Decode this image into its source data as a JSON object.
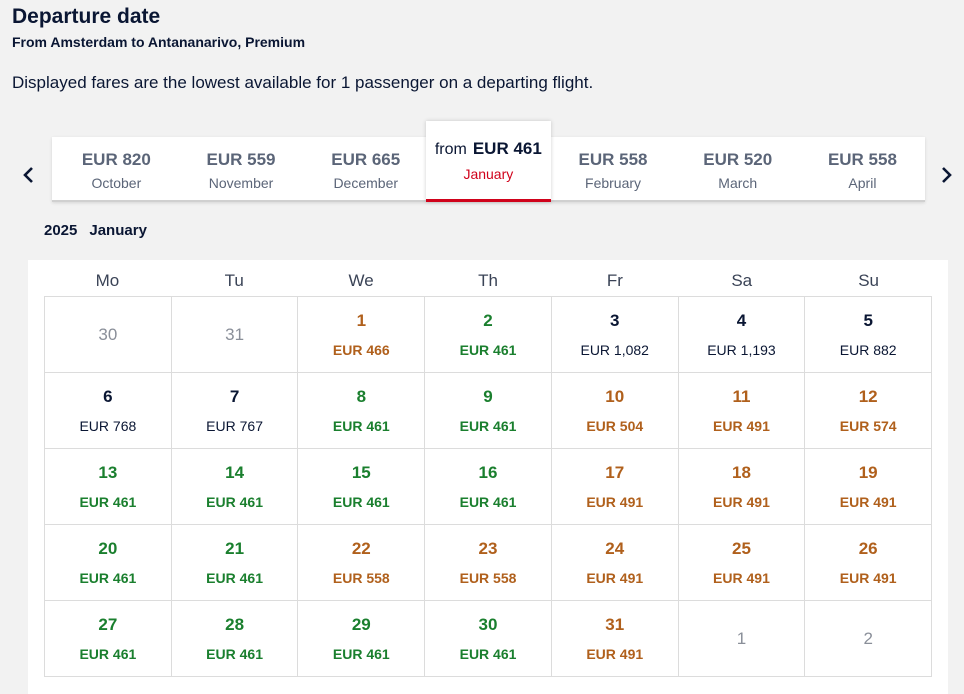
{
  "header": {
    "title": "Departure date",
    "subtitle": "From Amsterdam to Antananarivo, Premium",
    "description": "Displayed fares are the lowest available for 1 passenger on a departing flight."
  },
  "months": [
    {
      "price": "EUR 820",
      "name": "October"
    },
    {
      "price": "EUR 559",
      "name": "November"
    },
    {
      "price": "EUR 665",
      "name": "December"
    },
    {
      "from": "from",
      "price": "EUR 461",
      "name": "January",
      "active": true
    },
    {
      "price": "EUR 558",
      "name": "February"
    },
    {
      "price": "EUR 520",
      "name": "March"
    },
    {
      "price": "EUR 558",
      "name": "April"
    }
  ],
  "calendar": {
    "year": "2025",
    "month": "January",
    "weekdays": [
      "Mo",
      "Tu",
      "We",
      "Th",
      "Fr",
      "Sa",
      "Su"
    ],
    "weeks": [
      [
        {
          "day": "30",
          "fare": "",
          "type": "outside"
        },
        {
          "day": "31",
          "fare": "",
          "type": "outside"
        },
        {
          "day": "1",
          "fare": "EUR 466",
          "type": "orange"
        },
        {
          "day": "2",
          "fare": "EUR 461",
          "type": "green"
        },
        {
          "day": "3",
          "fare": "EUR 1,082",
          "type": "dark"
        },
        {
          "day": "4",
          "fare": "EUR 1,193",
          "type": "dark"
        },
        {
          "day": "5",
          "fare": "EUR 882",
          "type": "dark"
        }
      ],
      [
        {
          "day": "6",
          "fare": "EUR 768",
          "type": "dark"
        },
        {
          "day": "7",
          "fare": "EUR 767",
          "type": "dark"
        },
        {
          "day": "8",
          "fare": "EUR 461",
          "type": "green"
        },
        {
          "day": "9",
          "fare": "EUR 461",
          "type": "green"
        },
        {
          "day": "10",
          "fare": "EUR 504",
          "type": "orange"
        },
        {
          "day": "11",
          "fare": "EUR 491",
          "type": "orange"
        },
        {
          "day": "12",
          "fare": "EUR 574",
          "type": "orange"
        }
      ],
      [
        {
          "day": "13",
          "fare": "EUR 461",
          "type": "green"
        },
        {
          "day": "14",
          "fare": "EUR 461",
          "type": "green"
        },
        {
          "day": "15",
          "fare": "EUR 461",
          "type": "green"
        },
        {
          "day": "16",
          "fare": "EUR 461",
          "type": "green"
        },
        {
          "day": "17",
          "fare": "EUR 491",
          "type": "orange"
        },
        {
          "day": "18",
          "fare": "EUR 491",
          "type": "orange"
        },
        {
          "day": "19",
          "fare": "EUR 491",
          "type": "orange"
        }
      ],
      [
        {
          "day": "20",
          "fare": "EUR 461",
          "type": "green"
        },
        {
          "day": "21",
          "fare": "EUR 461",
          "type": "green"
        },
        {
          "day": "22",
          "fare": "EUR 558",
          "type": "orange"
        },
        {
          "day": "23",
          "fare": "EUR 558",
          "type": "orange"
        },
        {
          "day": "24",
          "fare": "EUR 491",
          "type": "orange"
        },
        {
          "day": "25",
          "fare": "EUR 491",
          "type": "orange"
        },
        {
          "day": "26",
          "fare": "EUR 491",
          "type": "orange"
        }
      ],
      [
        {
          "day": "27",
          "fare": "EUR 461",
          "type": "green"
        },
        {
          "day": "28",
          "fare": "EUR 461",
          "type": "green"
        },
        {
          "day": "29",
          "fare": "EUR 461",
          "type": "green"
        },
        {
          "day": "30",
          "fare": "EUR 461",
          "type": "green"
        },
        {
          "day": "31",
          "fare": "EUR 491",
          "type": "orange"
        },
        {
          "day": "1",
          "fare": "",
          "type": "outside"
        },
        {
          "day": "2",
          "fare": "",
          "type": "outside"
        }
      ]
    ]
  },
  "icons": {
    "prev": "chevron-left-icon",
    "next": "chevron-right-icon"
  },
  "colors": {
    "lowest_fare": "#1a7f2e",
    "higher_fare": "#b0601c",
    "active_accent": "#d0021b",
    "text_dark": "#0a1633"
  }
}
